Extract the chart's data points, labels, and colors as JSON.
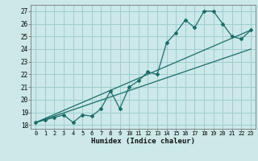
{
  "xlabel": "Humidex (Indice chaleur)",
  "bg_color": "#cce8e8",
  "grid_color": "#9ecece",
  "line_color": "#1a6e6a",
  "xlim": [
    -0.5,
    23.5
  ],
  "ylim": [
    17.7,
    27.5
  ],
  "x_ticks": [
    0,
    1,
    2,
    3,
    4,
    5,
    6,
    7,
    8,
    9,
    10,
    11,
    12,
    13,
    14,
    15,
    16,
    17,
    18,
    19,
    20,
    21,
    22,
    23
  ],
  "y_ticks": [
    18,
    19,
    20,
    21,
    22,
    23,
    24,
    25,
    26,
    27
  ],
  "data_x": [
    0,
    1,
    2,
    3,
    4,
    5,
    6,
    7,
    8,
    9,
    10,
    11,
    12,
    13,
    14,
    15,
    16,
    17,
    18,
    19,
    20,
    21,
    22,
    23
  ],
  "data_y": [
    18.2,
    18.4,
    18.6,
    18.8,
    18.2,
    18.8,
    18.7,
    19.3,
    20.7,
    19.3,
    21.0,
    21.5,
    22.2,
    22.0,
    24.5,
    25.3,
    26.3,
    25.7,
    27.0,
    27.0,
    26.0,
    25.0,
    24.8,
    25.5
  ],
  "trend1_x": [
    0,
    23
  ],
  "trend1_y": [
    18.2,
    25.5
  ],
  "trend2_x": [
    0,
    23
  ],
  "trend2_y": [
    18.2,
    24.0
  ]
}
